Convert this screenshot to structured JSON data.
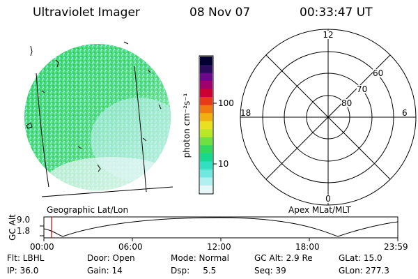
{
  "header": {
    "title": "Ultraviolet Imager",
    "date": "08 Nov 07",
    "time": "00:33:47 UT"
  },
  "left_panel": {
    "caption": "Geographic Lat/Lon"
  },
  "colorbar": {
    "unit_label": "photon cm⁻²s⁻¹",
    "tick_labels": [
      "100",
      "10"
    ],
    "colors": [
      "#000033",
      "#2a0a5a",
      "#6a0a8a",
      "#a0006a",
      "#cc0033",
      "#e83a1a",
      "#f07a10",
      "#f0b010",
      "#e8e020",
      "#b8e828",
      "#70e040",
      "#30d860",
      "#18d890",
      "#30e0c0",
      "#70e8e0",
      "#b0f0f0",
      "#e8f8f8"
    ]
  },
  "polar_plot": {
    "caption": "Apex MLat/MLT",
    "mlt_labels": [
      "12",
      "18",
      "6",
      "0"
    ],
    "lat_labels": [
      "60",
      "70",
      "80"
    ]
  },
  "orbit_plot": {
    "ylabel": "GC Alt",
    "y_ticks": [
      "9.0",
      "1.8"
    ],
    "x_ticks": [
      "00:00",
      "06:00",
      "12:00",
      "18:00",
      "23:59"
    ],
    "current_time_marker_color": "#cc0000"
  },
  "info": {
    "row1": [
      "Flt: LBHL",
      "Door: Open",
      "Mode: Normal",
      "GC Alt: 2.9 Re",
      "GLat: 15.0"
    ],
    "row2": [
      "IP: 36.0",
      "Gain: 14",
      "Dsp:     5.5",
      "Seq: 39",
      "GLon: 277.3"
    ]
  }
}
